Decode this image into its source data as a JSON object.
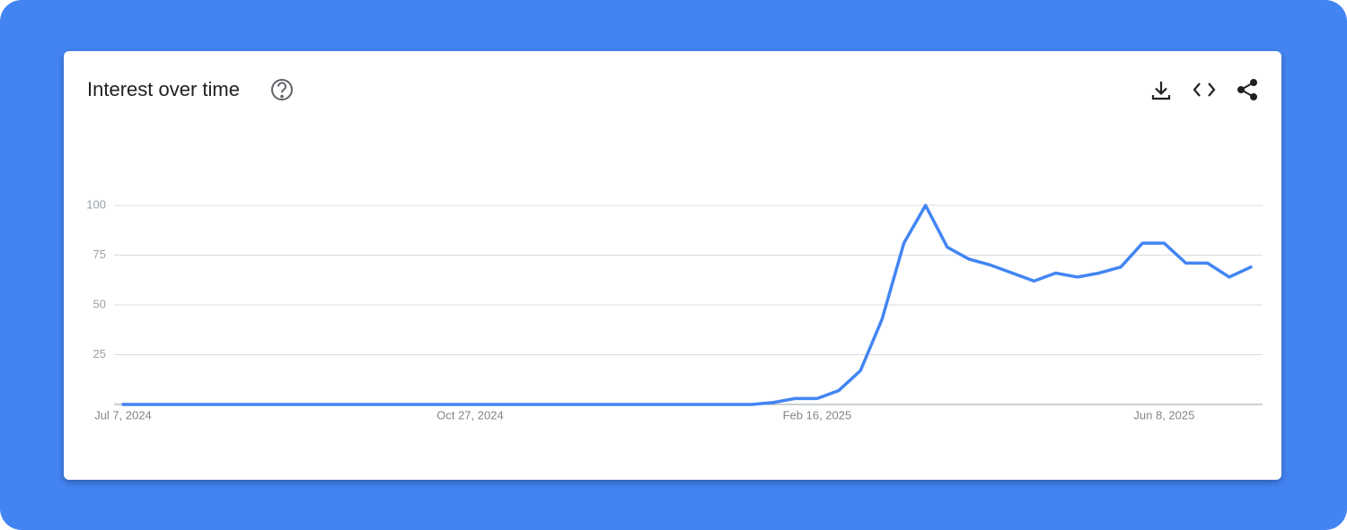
{
  "chart_data": {
    "type": "line",
    "title": "Interest over time",
    "categories": [
      "Jul 7, 2024",
      null,
      null,
      null,
      null,
      null,
      null,
      null,
      null,
      null,
      null,
      null,
      null,
      null,
      null,
      null,
      "Oct 27, 2024",
      null,
      null,
      null,
      null,
      null,
      null,
      null,
      null,
      null,
      null,
      null,
      null,
      null,
      null,
      null,
      "Feb 16, 2025",
      null,
      null,
      null,
      null,
      null,
      null,
      null,
      null,
      null,
      null,
      null,
      null,
      null,
      null,
      null,
      "Jun 8, 2025",
      null,
      null,
      null,
      null
    ],
    "values": [
      0,
      0,
      0,
      0,
      0,
      0,
      0,
      0,
      0,
      0,
      0,
      0,
      0,
      0,
      0,
      0,
      0,
      0,
      0,
      0,
      0,
      0,
      0,
      0,
      0,
      0,
      0,
      0,
      0,
      0,
      1,
      3,
      3,
      7,
      17,
      43,
      81,
      100,
      79,
      73,
      70,
      66,
      62,
      66,
      64,
      66,
      69,
      81,
      81,
      71,
      71,
      64,
      69
    ],
    "color": "#4285f4",
    "ylim": [
      0,
      100
    ],
    "yticks": [
      25,
      50,
      75,
      100
    ],
    "grid": true
  }
}
